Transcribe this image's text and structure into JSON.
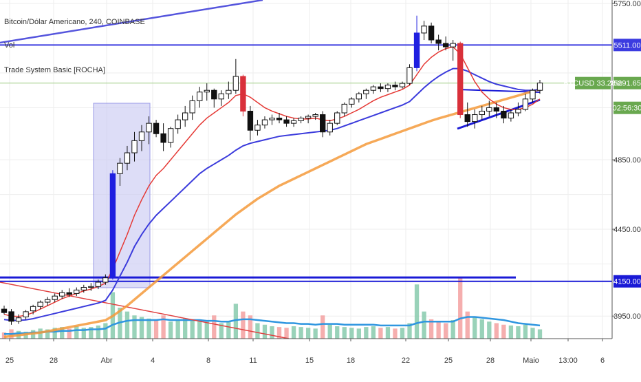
{
  "header": {
    "symbol_line": "Bitcoin/Dólar Americano, 240, COINBASE",
    "indicator_1": "Vol",
    "indicator_2": "Trade System Basic [ROCHA]"
  },
  "price_tag": {
    "label": "BTCUSD 33.28%",
    "value": "5291.65",
    "countdown": "02:56:30"
  },
  "colors": {
    "candle": "#111111",
    "bull_bar": "#1f1fe0",
    "bear_bar": "#d9303a",
    "ema_fast": "#e53935",
    "ema_slow": "#3b3bdc",
    "ma_long": "#f59a3b",
    "trendline": "#1a1ad6",
    "volume_up": "#7fc7a8",
    "volume_down": "#f29a9a",
    "volume_ma": "#2f96e0",
    "tag_green": "#69a84f",
    "grid": "#eeeeee",
    "box_fill": "#c8c8f2"
  },
  "chart_data": {
    "type": "candlestick",
    "title": "Bitcoin/Dólar Americano, 240, COINBASE",
    "y_tick_labels": [
      "5750.00",
      "4850.00",
      "4450.00",
      "3950.00"
    ],
    "x_tick_labels": [
      "25",
      "28",
      "Abr",
      "4",
      "8",
      "11",
      "15",
      "18",
      "22",
      "25",
      "28",
      "Maio",
      "13:00",
      "6"
    ],
    "ylim": [
      3820,
      5770
    ],
    "horizontal_levels": [
      {
        "value": 5511,
        "label": "5511.00"
      },
      {
        "value": 4150,
        "label": "4150.00"
      },
      {
        "value": 4180,
        "label": ""
      }
    ],
    "candles": [
      [
        3990,
        4010,
        3960,
        3970
      ],
      [
        3975,
        3990,
        3900,
        3920
      ],
      [
        3920,
        3960,
        3905,
        3940
      ],
      [
        3945,
        3985,
        3930,
        3975
      ],
      [
        3980,
        4015,
        3960,
        4005
      ],
      [
        4005,
        4040,
        3990,
        4030
      ],
      [
        4030,
        4060,
        4010,
        4045
      ],
      [
        4045,
        4080,
        4030,
        4065
      ],
      [
        4065,
        4100,
        4050,
        4085
      ],
      [
        4085,
        4110,
        4060,
        4075
      ],
      [
        4080,
        4115,
        4065,
        4100
      ],
      [
        4100,
        4130,
        4085,
        4115
      ],
      [
        4115,
        4140,
        4095,
        4120
      ],
      [
        4120,
        4160,
        4105,
        4145
      ],
      [
        4145,
        4190,
        4130,
        4170
      ],
      [
        4170,
        4790,
        4160,
        4770
      ],
      [
        4770,
        4860,
        4700,
        4830
      ],
      [
        4830,
        4930,
        4790,
        4890
      ],
      [
        4890,
        5010,
        4840,
        4960
      ],
      [
        4960,
        5050,
        4900,
        5010
      ],
      [
        5010,
        5100,
        4940,
        5060
      ],
      [
        5060,
        5080,
        4980,
        5000
      ],
      [
        5000,
        5060,
        4900,
        4950
      ],
      [
        4950,
        5040,
        4920,
        5030
      ],
      [
        5030,
        5110,
        5000,
        5080
      ],
      [
        5080,
        5160,
        5040,
        5120
      ],
      [
        5120,
        5220,
        5080,
        5190
      ],
      [
        5190,
        5270,
        5150,
        5240
      ],
      [
        5240,
        5290,
        5190,
        5250
      ],
      [
        5250,
        5260,
        5150,
        5200
      ],
      [
        5200,
        5250,
        5160,
        5230
      ],
      [
        5230,
        5300,
        5200,
        5250
      ],
      [
        5250,
        5430,
        5230,
        5330
      ],
      [
        5330,
        5340,
        5100,
        5130
      ],
      [
        5130,
        5160,
        4960,
        5020
      ],
      [
        5020,
        5080,
        4990,
        5050
      ],
      [
        5050,
        5100,
        5030,
        5080
      ],
      [
        5080,
        5110,
        5050,
        5090
      ],
      [
        5090,
        5120,
        5060,
        5080
      ],
      [
        5080,
        5100,
        5040,
        5060
      ],
      [
        5060,
        5090,
        5040,
        5075
      ],
      [
        5075,
        5100,
        5060,
        5090
      ],
      [
        5090,
        5110,
        5060,
        5100
      ],
      [
        5100,
        5120,
        5080,
        5110
      ],
      [
        5110,
        5130,
        4980,
        5010
      ],
      [
        5010,
        5080,
        4990,
        5060
      ],
      [
        5060,
        5130,
        5050,
        5120
      ],
      [
        5120,
        5180,
        5100,
        5170
      ],
      [
        5170,
        5210,
        5150,
        5200
      ],
      [
        5200,
        5240,
        5180,
        5230
      ],
      [
        5230,
        5260,
        5200,
        5250
      ],
      [
        5250,
        5280,
        5230,
        5270
      ],
      [
        5270,
        5290,
        5240,
        5260
      ],
      [
        5260,
        5290,
        5240,
        5280
      ],
      [
        5280,
        5300,
        5250,
        5270
      ],
      [
        5270,
        5300,
        5260,
        5290
      ],
      [
        5290,
        5400,
        5280,
        5380
      ],
      [
        5380,
        5680,
        5360,
        5580
      ],
      [
        5580,
        5650,
        5540,
        5620
      ],
      [
        5620,
        5640,
        5520,
        5540
      ],
      [
        5540,
        5570,
        5480,
        5520
      ],
      [
        5520,
        5560,
        5480,
        5500
      ],
      [
        5500,
        5540,
        5420,
        5520
      ],
      [
        5520,
        5530,
        5090,
        5110
      ],
      [
        5110,
        5180,
        5040,
        5070
      ],
      [
        5070,
        5140,
        5030,
        5110
      ],
      [
        5110,
        5160,
        5080,
        5130
      ],
      [
        5130,
        5190,
        5100,
        5150
      ],
      [
        5150,
        5180,
        5090,
        5130
      ],
      [
        5130,
        5160,
        5060,
        5090
      ],
      [
        5090,
        5140,
        5070,
        5120
      ],
      [
        5120,
        5180,
        5100,
        5140
      ],
      [
        5140,
        5230,
        5130,
        5200
      ],
      [
        5200,
        5260,
        5180,
        5250
      ],
      [
        5250,
        5310,
        5230,
        5292
      ]
    ],
    "ema_fast": [
      3960,
      3950,
      3948,
      3955,
      3970,
      3990,
      4010,
      4030,
      4050,
      4065,
      4080,
      4095,
      4105,
      4120,
      4140,
      4220,
      4320,
      4420,
      4530,
      4620,
      4700,
      4760,
      4800,
      4850,
      4900,
      4950,
      5000,
      5050,
      5090,
      5120,
      5150,
      5180,
      5220,
      5230,
      5210,
      5180,
      5150,
      5130,
      5115,
      5100,
      5090,
      5085,
      5085,
      5090,
      5080,
      5075,
      5085,
      5100,
      5120,
      5140,
      5165,
      5190,
      5210,
      5225,
      5240,
      5255,
      5280,
      5340,
      5400,
      5440,
      5470,
      5490,
      5500,
      5460,
      5380,
      5300,
      5240,
      5200,
      5170,
      5150,
      5140,
      5140,
      5150,
      5170,
      5200
    ],
    "ema_slow": [
      3930,
      3925,
      3925,
      3928,
      3935,
      3945,
      3955,
      3965,
      3975,
      3985,
      3995,
      4005,
      4015,
      4025,
      4040,
      4100,
      4180,
      4260,
      4350,
      4420,
      4480,
      4530,
      4570,
      4610,
      4650,
      4690,
      4730,
      4770,
      4800,
      4825,
      4850,
      4875,
      4905,
      4930,
      4945,
      4955,
      4965,
      4975,
      4985,
      4990,
      4995,
      5000,
      5005,
      5010,
      5015,
      5020,
      5030,
      5045,
      5060,
      5075,
      5090,
      5105,
      5120,
      5135,
      5150,
      5165,
      5185,
      5225,
      5265,
      5300,
      5330,
      5355,
      5375,
      5375,
      5360,
      5340,
      5320,
      5300,
      5285,
      5275,
      5265,
      5255,
      5250,
      5250,
      5255
    ],
    "ma_long": [
      3830,
      3835,
      3840,
      3845,
      3850,
      3855,
      3862,
      3870,
      3878,
      3886,
      3894,
      3902,
      3910,
      3918,
      3926,
      3950,
      3980,
      4010,
      4045,
      4080,
      4115,
      4150,
      4185,
      4220,
      4255,
      4290,
      4325,
      4360,
      4395,
      4430,
      4465,
      4500,
      4535,
      4565,
      4595,
      4625,
      4650,
      4675,
      4700,
      4720,
      4740,
      4760,
      4780,
      4800,
      4820,
      4840,
      4860,
      4880,
      4900,
      4920,
      4940,
      4955,
      4970,
      4985,
      5000,
      5015,
      5030,
      5045,
      5060,
      5075,
      5088,
      5100,
      5112,
      5124,
      5136,
      5148,
      5160,
      5172,
      5184,
      5196,
      5208,
      5220,
      5232,
      5244,
      5256
    ],
    "volume": [
      8,
      12,
      10,
      9,
      11,
      13,
      12,
      14,
      15,
      13,
      16,
      14,
      15,
      17,
      20,
      60,
      40,
      35,
      30,
      28,
      26,
      25,
      30,
      22,
      24,
      26,
      25,
      24,
      22,
      30,
      20,
      22,
      45,
      35,
      30,
      20,
      18,
      16,
      15,
      14,
      16,
      15,
      14,
      13,
      30,
      18,
      16,
      15,
      14,
      13,
      15,
      16,
      14,
      15,
      13,
      14,
      20,
      70,
      35,
      25,
      22,
      20,
      24,
      80,
      35,
      28,
      25,
      22,
      20,
      18,
      17,
      16,
      18,
      14,
      12
    ],
    "volume_ma": [
      6,
      6,
      7,
      7,
      8,
      8,
      9,
      9,
      10,
      10,
      11,
      11,
      12,
      12,
      13,
      18,
      21,
      23,
      24,
      24,
      24,
      24,
      25,
      24,
      24,
      24,
      24,
      24,
      23,
      23,
      22,
      22,
      24,
      25,
      25,
      24,
      23,
      22,
      21,
      20,
      20,
      19,
      19,
      18,
      19,
      19,
      19,
      18,
      18,
      18,
      18,
      18,
      17,
      17,
      17,
      17,
      17,
      20,
      22,
      22,
      22,
      22,
      22,
      26,
      28,
      28,
      27,
      26,
      25,
      24,
      22,
      20,
      19,
      18,
      17
    ]
  }
}
